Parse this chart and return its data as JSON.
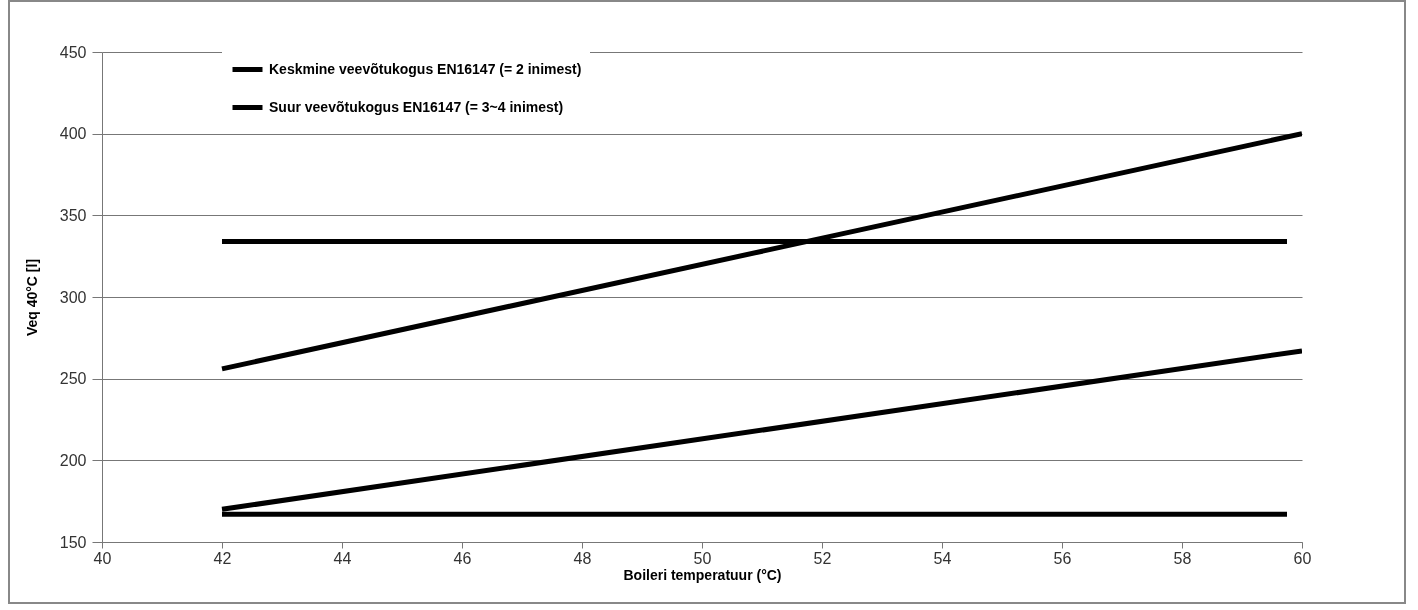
{
  "chart_data": {
    "type": "line",
    "xlabel": "Boileri temperatuur (°C)",
    "ylabel": "Veq 40°C [l]",
    "xlim": [
      40,
      60
    ],
    "xticks": [
      40,
      42,
      44,
      46,
      48,
      50,
      52,
      54,
      56,
      58,
      60
    ],
    "ylim": [
      150,
      450
    ],
    "yticks": [
      150,
      200,
      250,
      300,
      350,
      400,
      450
    ],
    "grid": "y",
    "legend": "top left",
    "line_style": "solid",
    "series": [
      {
        "color": "#000000",
        "x": [
          42,
          60
        ],
        "values": [
          256,
          400
        ]
      },
      {
        "color": "#000000",
        "x": [
          42,
          60
        ],
        "values": [
          170,
          267
        ]
      },
      {
        "name": "Keskmine veevõtukogus EN16147 (= 2 inimest)",
        "color": "#000000",
        "x": [
          42,
          59.75
        ],
        "values": [
          167,
          167
        ]
      },
      {
        "name": "Suur veevõtukogus EN16147 (= 3~4 inimest)",
        "color": "#000000",
        "x": [
          42,
          59.75
        ],
        "values": [
          334,
          334
        ]
      }
    ]
  }
}
